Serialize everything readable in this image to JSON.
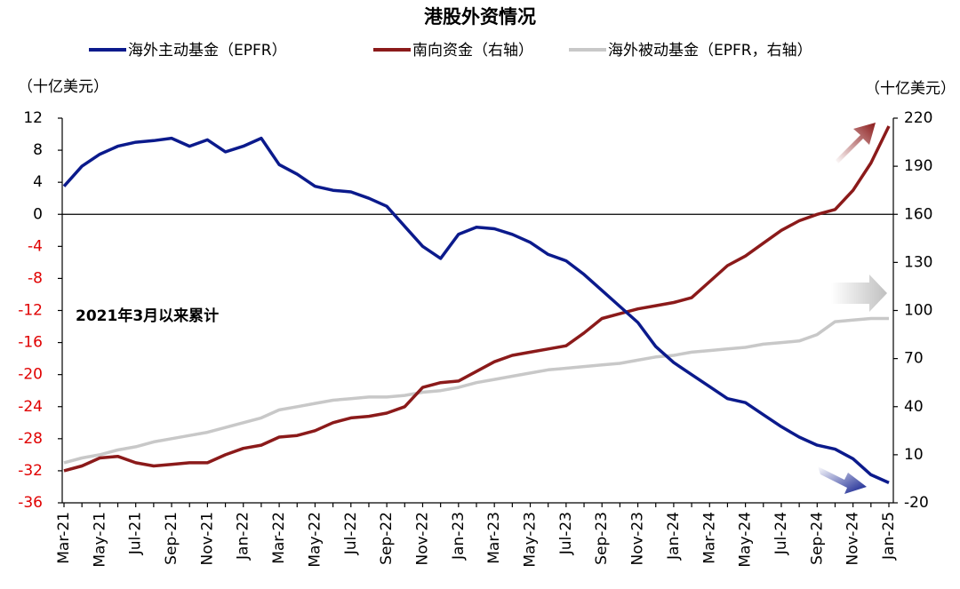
{
  "chart_data": {
    "type": "line",
    "title": "港股外资情况",
    "y_label": "（十亿美元）",
    "y2_label": "（十亿美元）",
    "annotation": "2021年3月以来累计",
    "categories": [
      "Mar-21",
      null,
      "May-21",
      null,
      "Jul-21",
      null,
      "Sep-21",
      null,
      "Nov-21",
      null,
      "Jan-22",
      null,
      "Mar-22",
      null,
      "May-22",
      null,
      "Jul-22",
      null,
      "Sep-22",
      null,
      "Nov-22",
      null,
      "Jan-23",
      null,
      "Mar-23",
      null,
      "May-23",
      null,
      "Jul-23",
      null,
      "Sep-23",
      null,
      "Nov-23",
      null,
      "Jan-24",
      null,
      "Mar-24",
      null,
      "May-24",
      null,
      "Jul-24",
      null,
      "Sep-24",
      null,
      "Nov-24",
      null,
      "Jan-25"
    ],
    "ylim": [
      -36,
      12
    ],
    "yticks": [
      -36,
      -32,
      -28,
      -24,
      -20,
      -16,
      -12,
      -8,
      -4,
      0,
      4,
      8,
      12
    ],
    "y2lim": [
      -20,
      220
    ],
    "y2ticks": [
      -20,
      10,
      40,
      70,
      100,
      130,
      160,
      190,
      220
    ],
    "negative_ytick_color": "#e00000",
    "grid": false,
    "legend": "top",
    "series": [
      {
        "name": "海外主动基金（EPFR）",
        "color": "#0b1a8c",
        "axis": "y",
        "values": [
          3.5,
          6,
          7.5,
          8.5,
          9,
          9.2,
          9.5,
          8.5,
          9.3,
          7.8,
          8.5,
          9.5,
          6.2,
          5,
          3.5,
          3,
          2.8,
          2,
          1,
          -1.5,
          -4,
          -5.5,
          -2.5,
          -1.6,
          -1.8,
          -2.5,
          -3.5,
          -5,
          -5.8,
          -7.5,
          -9.5,
          -11.5,
          -13.5,
          -16.5,
          -18.5,
          -20,
          -21.5,
          -23,
          -23.5,
          -25,
          -26.5,
          -27.8,
          -28.8,
          -29.3,
          -30.5,
          -32.5,
          -33.5
        ]
      },
      {
        "name": "南向资金（右轴）",
        "color": "#8b1a1a",
        "axis": "y2",
        "values": [
          0,
          3,
          8,
          9,
          5,
          3,
          4,
          5,
          5,
          10,
          14,
          16,
          21,
          22,
          25,
          30,
          33,
          34,
          36,
          40,
          52,
          55,
          56,
          62,
          68,
          72,
          74,
          76,
          78,
          86,
          95,
          98,
          101,
          103,
          105,
          108,
          118,
          128,
          134,
          142,
          150,
          156,
          160,
          163,
          175,
          192,
          215
        ]
      },
      {
        "name": "海外被动基金（EPFR，右轴）",
        "color": "#c8c8c8",
        "axis": "y2",
        "values": [
          5,
          8,
          10,
          13,
          15,
          18,
          20,
          22,
          24,
          27,
          30,
          33,
          38,
          40,
          42,
          44,
          45,
          46,
          46,
          47,
          49,
          50,
          52,
          55,
          57,
          59,
          61,
          63,
          64,
          65,
          66,
          67,
          69,
          71,
          72,
          74,
          75,
          76,
          77,
          79,
          80,
          81,
          85,
          93,
          94,
          95,
          95
        ]
      }
    ]
  }
}
